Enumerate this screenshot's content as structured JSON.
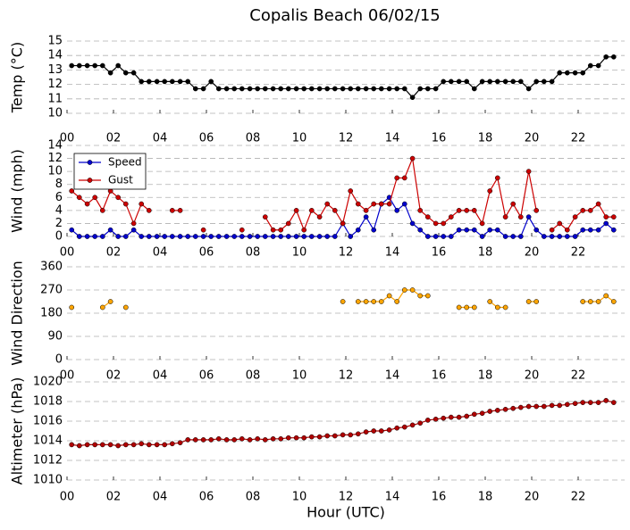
{
  "chart_data": [
    {
      "type": "line",
      "title": "Copalis Beach 06/02/15",
      "ylabel": "Temp (°C)",
      "x": [
        0.2,
        0.53,
        0.87,
        1.2,
        1.53,
        1.87,
        2.2,
        2.53,
        2.87,
        3.2,
        3.53,
        3.87,
        4.2,
        4.53,
        4.87,
        5.2,
        5.53,
        5.87,
        6.2,
        6.53,
        6.87,
        7.2,
        7.53,
        7.87,
        8.2,
        8.53,
        8.87,
        9.2,
        9.53,
        9.87,
        10.2,
        10.53,
        10.87,
        11.2,
        11.53,
        11.87,
        12.2,
        12.53,
        12.87,
        13.2,
        13.53,
        13.87,
        14.2,
        14.53,
        14.87,
        15.2,
        15.53,
        15.87,
        16.2,
        16.53,
        16.87,
        17.2,
        17.53,
        17.87,
        18.2,
        18.53,
        18.87,
        19.2,
        19.53,
        19.87,
        20.2,
        20.53,
        20.87,
        21.2,
        21.53,
        21.87,
        22.2,
        22.53,
        22.87,
        23.2,
        23.53
      ],
      "xlim": [
        0,
        24
      ],
      "xticks": [
        {
          "value": 0,
          "label": "00"
        },
        {
          "value": 2,
          "label": "02"
        },
        {
          "value": 4,
          "label": "04"
        },
        {
          "value": 6,
          "label": "06"
        },
        {
          "value": 8,
          "label": "08"
        },
        {
          "value": 10,
          "label": "10"
        },
        {
          "value": 12,
          "label": "12"
        },
        {
          "value": 14,
          "label": "14"
        },
        {
          "value": 16,
          "label": "16"
        },
        {
          "value": 18,
          "label": "18"
        },
        {
          "value": 20,
          "label": "20"
        },
        {
          "value": 22,
          "label": "22"
        }
      ],
      "ylim": [
        10,
        15
      ],
      "yticks": [
        10,
        11,
        12,
        13,
        14,
        15
      ],
      "grid": true,
      "series": [
        {
          "name": "Temp",
          "color": "#000000",
          "values": [
            13.3,
            13.3,
            13.3,
            13.3,
            13.3,
            12.8,
            13.3,
            12.8,
            12.8,
            12.2,
            12.2,
            12.2,
            12.2,
            12.2,
            12.2,
            12.2,
            11.7,
            11.7,
            12.2,
            11.7,
            11.7,
            11.7,
            11.7,
            11.7,
            11.7,
            11.7,
            11.7,
            11.7,
            11.7,
            11.7,
            11.7,
            11.7,
            11.7,
            11.7,
            11.7,
            11.7,
            11.7,
            11.7,
            11.7,
            11.7,
            11.7,
            11.7,
            11.7,
            11.7,
            11.1,
            11.7,
            11.7,
            11.7,
            12.2,
            12.2,
            12.2,
            12.2,
            11.7,
            12.2,
            12.2,
            12.2,
            12.2,
            12.2,
            12.2,
            11.7,
            12.2,
            12.2,
            12.2,
            12.8,
            12.8,
            12.8,
            12.8,
            13.3,
            13.3,
            13.9,
            13.9
          ]
        }
      ]
    },
    {
      "type": "line",
      "ylabel": "Wind (mph)",
      "legend": "upper left",
      "x": [
        0.2,
        0.53,
        0.87,
        1.2,
        1.53,
        1.87,
        2.2,
        2.53,
        2.87,
        3.2,
        3.53,
        3.87,
        4.2,
        4.53,
        4.87,
        5.2,
        5.53,
        5.87,
        6.2,
        6.53,
        6.87,
        7.2,
        7.53,
        7.87,
        8.2,
        8.53,
        8.87,
        9.2,
        9.53,
        9.87,
        10.2,
        10.53,
        10.87,
        11.2,
        11.53,
        11.87,
        12.2,
        12.53,
        12.87,
        13.2,
        13.53,
        13.87,
        14.2,
        14.53,
        14.87,
        15.2,
        15.53,
        15.87,
        16.2,
        16.53,
        16.87,
        17.2,
        17.53,
        17.87,
        18.2,
        18.53,
        18.87,
        19.2,
        19.53,
        19.87,
        20.2,
        20.53,
        20.87,
        21.2,
        21.53,
        21.87,
        22.2,
        22.53,
        22.87,
        23.2,
        23.53
      ],
      "xlim": [
        0,
        24
      ],
      "xticks": [
        {
          "value": 0,
          "label": "00"
        },
        {
          "value": 2,
          "label": "02"
        },
        {
          "value": 4,
          "label": "04"
        },
        {
          "value": 6,
          "label": "06"
        },
        {
          "value": 8,
          "label": "08"
        },
        {
          "value": 10,
          "label": "10"
        },
        {
          "value": 12,
          "label": "12"
        },
        {
          "value": 14,
          "label": "14"
        },
        {
          "value": 16,
          "label": "16"
        },
        {
          "value": 18,
          "label": "18"
        },
        {
          "value": 20,
          "label": "20"
        },
        {
          "value": 22,
          "label": "22"
        }
      ],
      "ylim": [
        0,
        14
      ],
      "yticks": [
        0,
        2,
        4,
        6,
        8,
        10,
        12,
        14
      ],
      "grid": true,
      "series": [
        {
          "name": "Speed",
          "color": "#0000cc",
          "values": [
            1,
            0,
            0,
            0,
            0,
            1,
            0,
            0,
            1,
            0,
            0,
            0,
            0,
            0,
            0,
            0,
            0,
            0,
            0,
            0,
            0,
            0,
            0,
            0,
            0,
            0,
            0,
            0,
            0,
            0,
            0,
            0,
            0,
            0,
            0,
            2,
            0,
            1,
            3,
            1,
            5,
            6,
            4,
            5,
            2,
            1,
            0,
            0,
            0,
            0,
            1,
            1,
            1,
            0,
            1,
            1,
            0,
            0,
            0,
            3,
            1,
            0,
            0,
            0,
            0,
            0,
            1,
            1,
            1,
            2,
            1
          ]
        },
        {
          "name": "Gust",
          "color": "#cc0000",
          "values": [
            7,
            6,
            5,
            6,
            4,
            7,
            6,
            5,
            2,
            5,
            4,
            null,
            null,
            4,
            4,
            null,
            null,
            1,
            null,
            null,
            null,
            null,
            1,
            null,
            null,
            3,
            1,
            1,
            2,
            4,
            1,
            4,
            3,
            5,
            4,
            2,
            7,
            5,
            4,
            5,
            5,
            5,
            9,
            9,
            12,
            4,
            3,
            2,
            2,
            3,
            4,
            4,
            4,
            2,
            7,
            9,
            3,
            5,
            3,
            10,
            4,
            null,
            1,
            2,
            1,
            3,
            4,
            4,
            5,
            3,
            3
          ]
        }
      ]
    },
    {
      "type": "line",
      "ylabel": "Wind Direction",
      "x": [
        0.2,
        0.53,
        0.87,
        1.2,
        1.53,
        1.87,
        2.2,
        2.53,
        2.87,
        3.2,
        3.53,
        3.87,
        4.2,
        4.53,
        4.87,
        5.2,
        5.53,
        5.87,
        6.2,
        6.53,
        6.87,
        7.2,
        7.53,
        7.87,
        8.2,
        8.53,
        8.87,
        9.2,
        9.53,
        9.87,
        10.2,
        10.53,
        10.87,
        11.2,
        11.53,
        11.87,
        12.2,
        12.53,
        12.87,
        13.2,
        13.53,
        13.87,
        14.2,
        14.53,
        14.87,
        15.2,
        15.53,
        15.87,
        16.2,
        16.53,
        16.87,
        17.2,
        17.53,
        17.87,
        18.2,
        18.53,
        18.87,
        19.2,
        19.53,
        19.87,
        20.2,
        20.53,
        20.87,
        21.2,
        21.53,
        21.87,
        22.2,
        22.53,
        22.87,
        23.2,
        23.53
      ],
      "xlim": [
        0,
        24
      ],
      "xticks": [
        {
          "value": 0,
          "label": "00"
        },
        {
          "value": 2,
          "label": "02"
        },
        {
          "value": 4,
          "label": "04"
        },
        {
          "value": 6,
          "label": "06"
        },
        {
          "value": 8,
          "label": "08"
        },
        {
          "value": 10,
          "label": "10"
        },
        {
          "value": 12,
          "label": "12"
        },
        {
          "value": 14,
          "label": "14"
        },
        {
          "value": 16,
          "label": "16"
        },
        {
          "value": 18,
          "label": "18"
        },
        {
          "value": 20,
          "label": "20"
        },
        {
          "value": 22,
          "label": "22"
        }
      ],
      "ylim": [
        0,
        360
      ],
      "yticks": [
        0,
        90,
        180,
        270,
        360
      ],
      "grid": true,
      "series": [
        {
          "name": "Direction",
          "color": "#ffa500",
          "values": [
            202.5,
            null,
            null,
            null,
            202.5,
            225,
            null,
            202.5,
            null,
            null,
            null,
            null,
            null,
            null,
            null,
            null,
            null,
            null,
            null,
            null,
            null,
            null,
            null,
            null,
            null,
            null,
            null,
            null,
            null,
            null,
            null,
            null,
            null,
            null,
            null,
            225,
            null,
            225,
            225,
            225,
            225,
            247.5,
            225,
            270,
            270,
            247.5,
            247.5,
            null,
            null,
            null,
            202.5,
            202.5,
            202.5,
            null,
            225,
            202.5,
            202.5,
            null,
            null,
            225,
            225,
            null,
            null,
            null,
            null,
            null,
            225,
            225,
            225,
            247.5,
            225
          ]
        }
      ]
    },
    {
      "type": "line",
      "ylabel": "Altimeter (hPa)",
      "xlabel": "Hour (UTC)",
      "x": [
        0.2,
        0.53,
        0.87,
        1.2,
        1.53,
        1.87,
        2.2,
        2.53,
        2.87,
        3.2,
        3.53,
        3.87,
        4.2,
        4.53,
        4.87,
        5.2,
        5.53,
        5.87,
        6.2,
        6.53,
        6.87,
        7.2,
        7.53,
        7.87,
        8.2,
        8.53,
        8.87,
        9.2,
        9.53,
        9.87,
        10.2,
        10.53,
        10.87,
        11.2,
        11.53,
        11.87,
        12.2,
        12.53,
        12.87,
        13.2,
        13.53,
        13.87,
        14.2,
        14.53,
        14.87,
        15.2,
        15.53,
        15.87,
        16.2,
        16.53,
        16.87,
        17.2,
        17.53,
        17.87,
        18.2,
        18.53,
        18.87,
        19.2,
        19.53,
        19.87,
        20.2,
        20.53,
        20.87,
        21.2,
        21.53,
        21.87,
        22.2,
        22.53,
        22.87,
        23.2,
        23.53
      ],
      "xlim": [
        0,
        24
      ],
      "xticks": [
        {
          "value": 0,
          "label": "00"
        },
        {
          "value": 2,
          "label": "02"
        },
        {
          "value": 4,
          "label": "04"
        },
        {
          "value": 6,
          "label": "06"
        },
        {
          "value": 8,
          "label": "08"
        },
        {
          "value": 10,
          "label": "10"
        },
        {
          "value": 12,
          "label": "12"
        },
        {
          "value": 14,
          "label": "14"
        },
        {
          "value": 16,
          "label": "16"
        },
        {
          "value": 18,
          "label": "18"
        },
        {
          "value": 20,
          "label": "20"
        },
        {
          "value": 22,
          "label": "22"
        }
      ],
      "ylim": [
        1010,
        1020
      ],
      "yticks": [
        1010,
        1012,
        1014,
        1016,
        1018,
        1020
      ],
      "grid": true,
      "series": [
        {
          "name": "Altimeter",
          "color": "#b00000",
          "values": [
            1013.6,
            1013.5,
            1013.6,
            1013.6,
            1013.6,
            1013.6,
            1013.5,
            1013.6,
            1013.6,
            1013.7,
            1013.6,
            1013.6,
            1013.6,
            1013.7,
            1013.8,
            1014.1,
            1014.1,
            1014.1,
            1014.1,
            1014.2,
            1014.1,
            1014.1,
            1014.2,
            1014.1,
            1014.2,
            1014.1,
            1014.2,
            1014.2,
            1014.3,
            1014.3,
            1014.3,
            1014.4,
            1014.4,
            1014.5,
            1014.5,
            1014.6,
            1014.6,
            1014.7,
            1014.9,
            1015.0,
            1015.0,
            1015.1,
            1015.3,
            1015.4,
            1015.6,
            1015.8,
            1016.1,
            1016.2,
            1016.3,
            1016.4,
            1016.4,
            1016.5,
            1016.7,
            1016.8,
            1017.0,
            1017.1,
            1017.2,
            1017.3,
            1017.4,
            1017.5,
            1017.5,
            1017.5,
            1017.6,
            1017.6,
            1017.7,
            1017.8,
            1017.9,
            1017.9,
            1017.9,
            1018.1,
            1017.9
          ]
        }
      ]
    }
  ]
}
